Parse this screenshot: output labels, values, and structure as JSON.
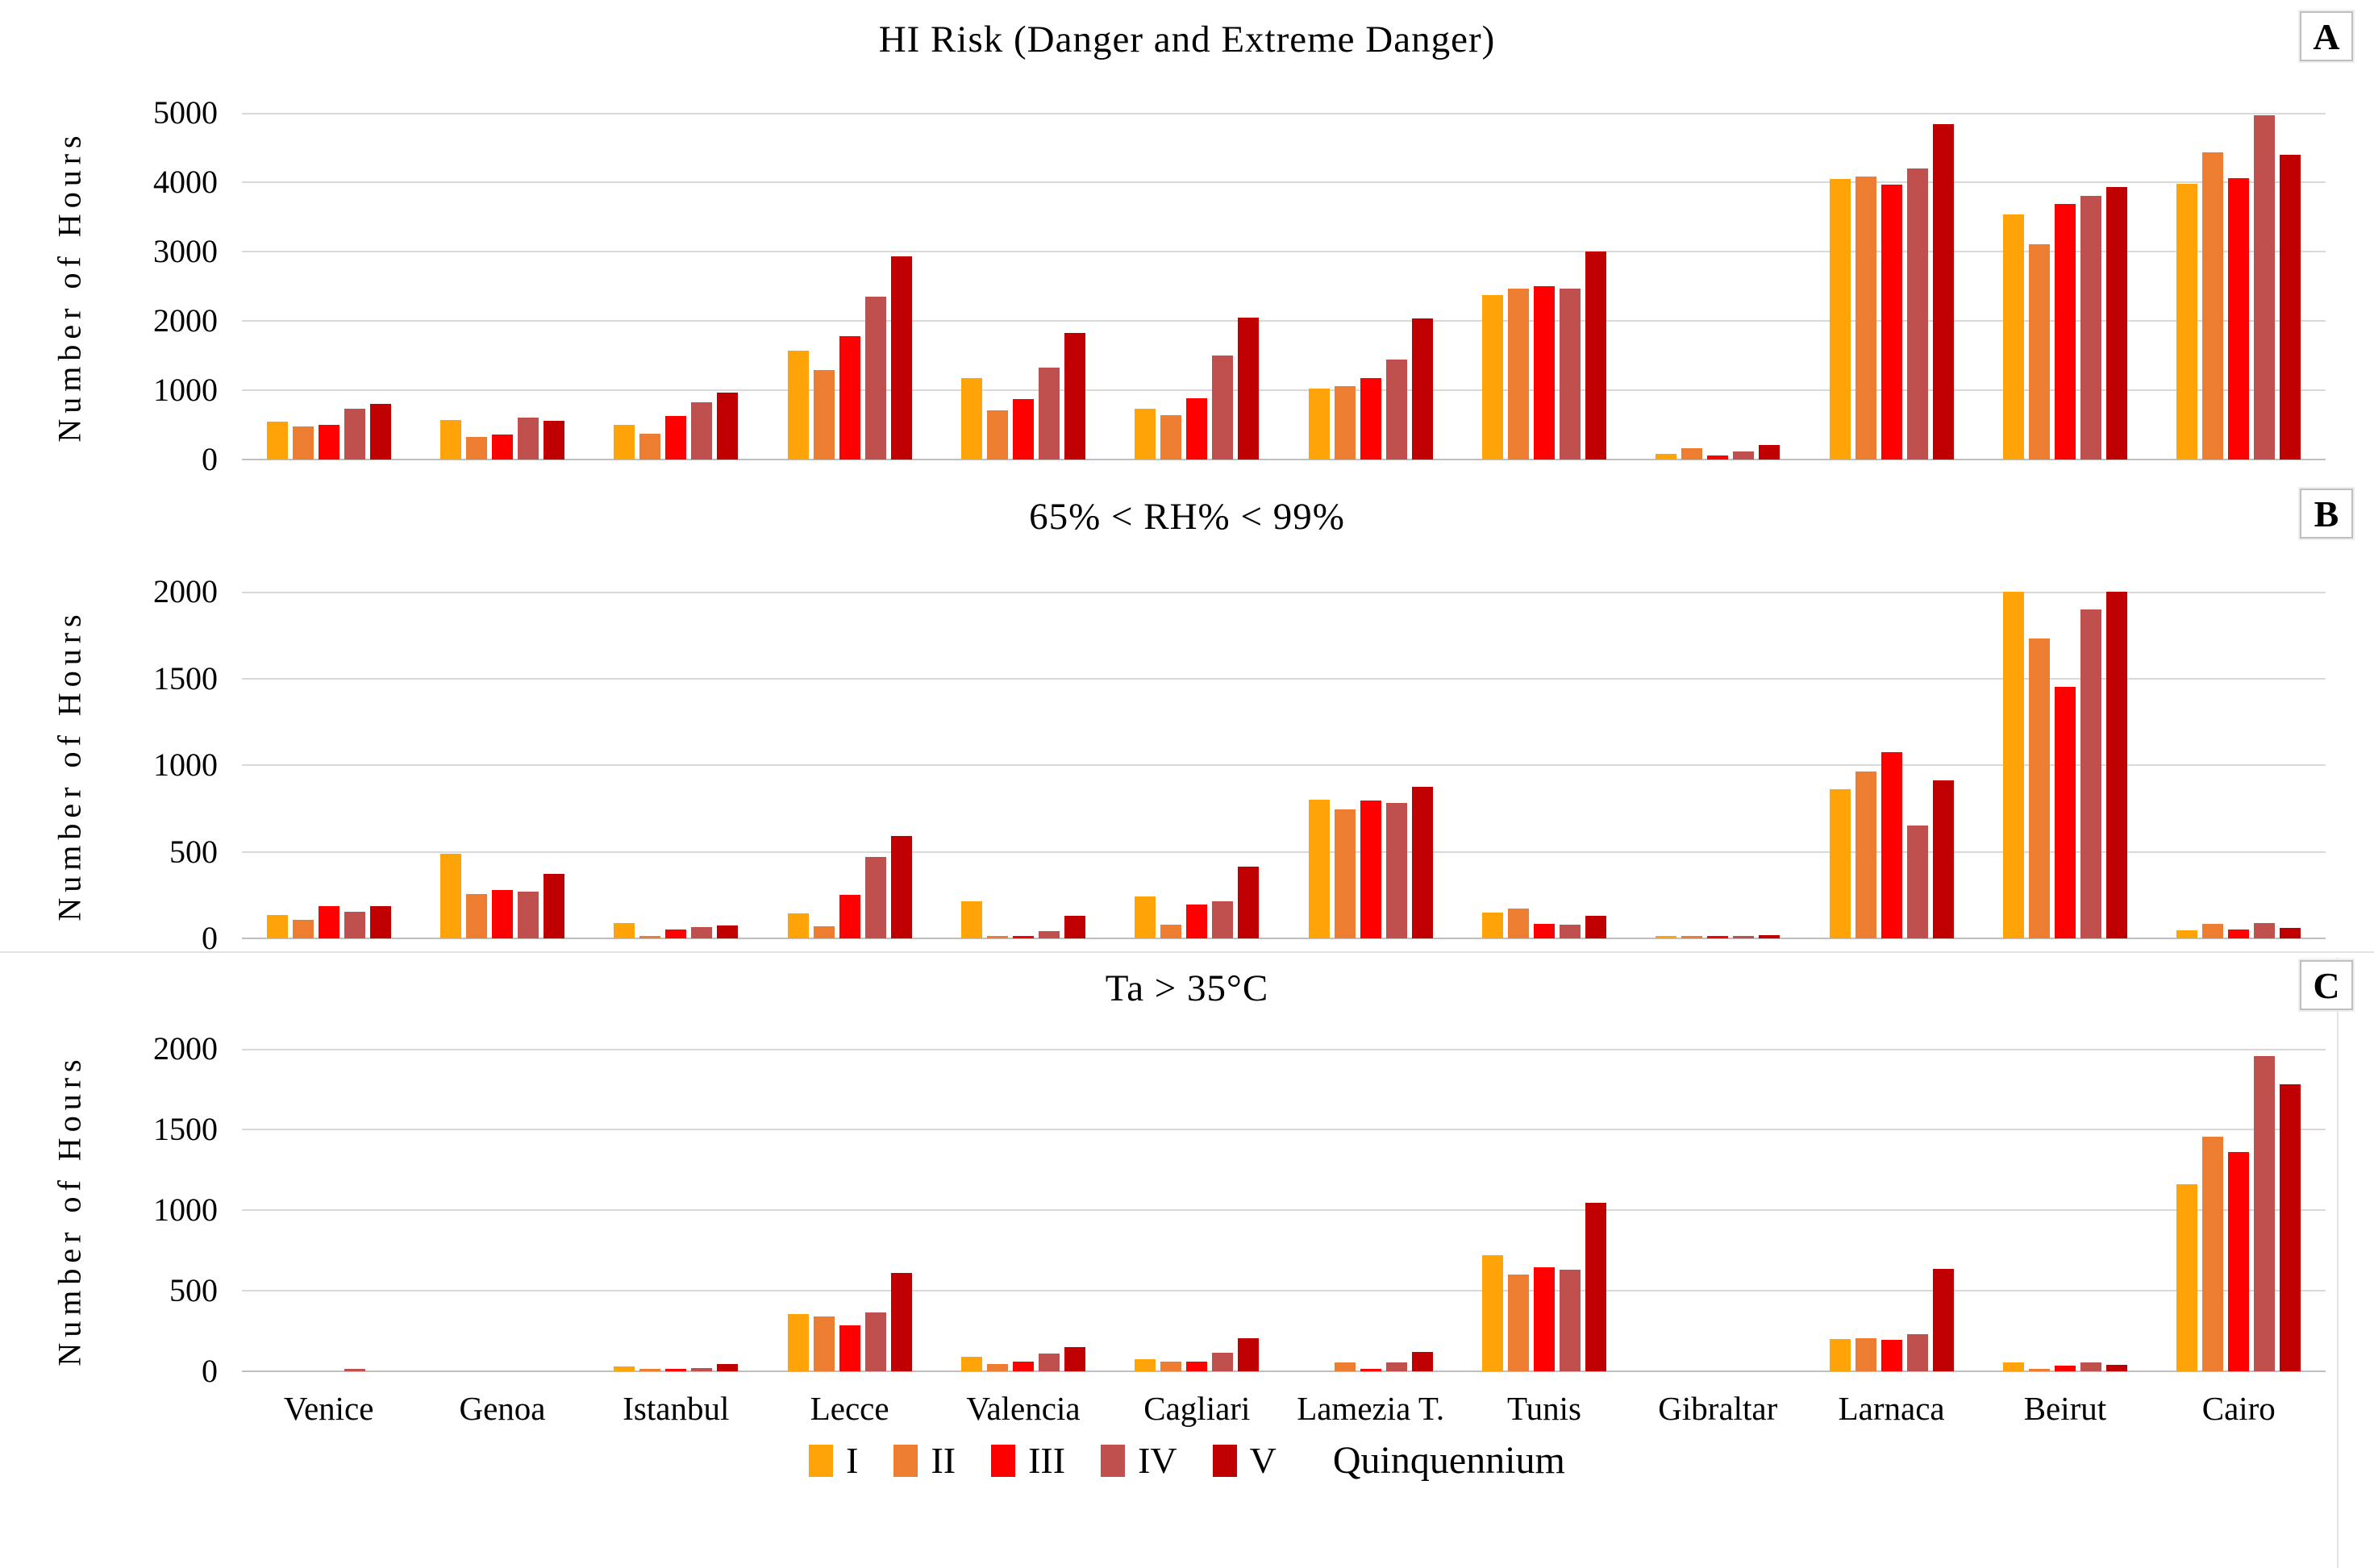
{
  "legend": {
    "series_labels": [
      "I",
      "II",
      "III",
      "IV",
      "V"
    ],
    "suffix_label": "Quinquennium"
  },
  "series_colors": [
    "#FFA408",
    "#ED7D31",
    "#FF0000",
    "#C0504D",
    "#C00000"
  ],
  "chart_data": [
    {
      "type": "bar",
      "panel_label": "A",
      "title": "HI Risk (Danger and Extreme Danger)",
      "ylabel": "Number of Hours",
      "ylim": [
        0,
        5000
      ],
      "ytick_step": 1000,
      "grid": true,
      "legend_position": "shared-bottom",
      "show_category_labels": false,
      "categories": [
        "Venice",
        "Genoa",
        "Istanbul",
        "Lecce",
        "Valencia",
        "Cagliari",
        "Lamezia T.",
        "Tunis",
        "Gibraltar",
        "Larnaca",
        "Beirut",
        "Cairo"
      ],
      "series": [
        {
          "name": "I",
          "values": [
            545,
            575,
            495,
            1565,
            1180,
            735,
            1020,
            2375,
            85,
            4050,
            3540,
            3980
          ]
        },
        {
          "name": "II",
          "values": [
            475,
            325,
            370,
            1290,
            715,
            640,
            1060,
            2470,
            160,
            4080,
            3110,
            4425
          ]
        },
        {
          "name": "III",
          "values": [
            495,
            360,
            625,
            1775,
            870,
            885,
            1170,
            2500,
            55,
            3960,
            3690,
            4055
          ]
        },
        {
          "name": "IV",
          "values": [
            730,
            610,
            825,
            2350,
            1330,
            1495,
            1440,
            2460,
            115,
            4200,
            3805,
            4960
          ]
        },
        {
          "name": "V",
          "values": [
            800,
            560,
            970,
            2930,
            1825,
            2050,
            2040,
            3000,
            210,
            4835,
            3925,
            4395
          ]
        }
      ]
    },
    {
      "type": "bar",
      "panel_label": "B",
      "title": "65% < RH% < 99%",
      "ylabel": "Number of Hours",
      "ylim": [
        0,
        2000
      ],
      "ytick_step": 500,
      "grid": true,
      "legend_position": "shared-bottom",
      "show_category_labels": false,
      "categories": [
        "Venice",
        "Genoa",
        "Istanbul",
        "Lecce",
        "Valencia",
        "Cagliari",
        "Lamezia T.",
        "Tunis",
        "Gibraltar",
        "Larnaca",
        "Beirut",
        "Cairo"
      ],
      "series": [
        {
          "name": "I",
          "values": [
            135,
            490,
            90,
            145,
            215,
            240,
            800,
            150,
            15,
            860,
            2000,
            45
          ]
        },
        {
          "name": "II",
          "values": [
            105,
            255,
            8,
            70,
            10,
            80,
            745,
            170,
            8,
            965,
            1730,
            85
          ]
        },
        {
          "name": "III",
          "values": [
            185,
            280,
            50,
            250,
            10,
            195,
            795,
            85,
            5,
            1075,
            1450,
            50
          ]
        },
        {
          "name": "IV",
          "values": [
            155,
            270,
            65,
            470,
            40,
            215,
            780,
            80,
            12,
            650,
            1900,
            90
          ]
        },
        {
          "name": "V",
          "values": [
            185,
            370,
            75,
            590,
            130,
            415,
            875,
            130,
            20,
            910,
            2000,
            60
          ]
        }
      ]
    },
    {
      "type": "bar",
      "panel_label": "C",
      "title": "Ta > 35°C",
      "ylabel": "Number of Hours",
      "ylim": [
        0,
        2000
      ],
      "ytick_step": 500,
      "grid": true,
      "legend_position": "shared-bottom",
      "show_category_labels": true,
      "categories": [
        "Venice",
        "Genoa",
        "Istanbul",
        "Lecce",
        "Valencia",
        "Cagliari",
        "Lamezia T.",
        "Tunis",
        "Gibraltar",
        "Larnaca",
        "Beirut",
        "Cairo"
      ],
      "series": [
        {
          "name": "I",
          "values": [
            0,
            0,
            30,
            355,
            88,
            75,
            0,
            720,
            0,
            200,
            55,
            1160
          ]
        },
        {
          "name": "II",
          "values": [
            0,
            0,
            10,
            340,
            45,
            60,
            55,
            600,
            0,
            205,
            15,
            1455
          ]
        },
        {
          "name": "III",
          "values": [
            0,
            0,
            12,
            285,
            62,
            60,
            15,
            645,
            0,
            195,
            35,
            1360
          ]
        },
        {
          "name": "IV",
          "values": [
            8,
            0,
            20,
            365,
            112,
            115,
            55,
            630,
            0,
            230,
            55,
            1955
          ]
        },
        {
          "name": "V",
          "values": [
            0,
            0,
            43,
            610,
            150,
            205,
            120,
            1045,
            0,
            635,
            40,
            1780
          ]
        }
      ]
    }
  ]
}
